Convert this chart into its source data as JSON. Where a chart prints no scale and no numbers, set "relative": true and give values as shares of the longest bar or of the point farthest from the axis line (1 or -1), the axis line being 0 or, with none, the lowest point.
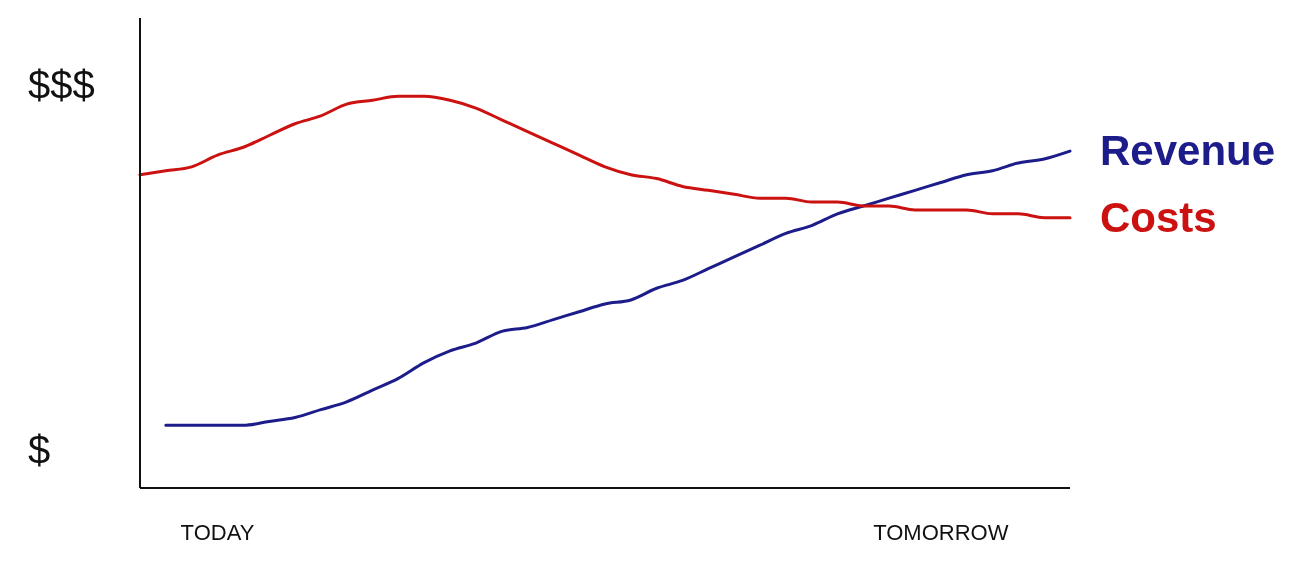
{
  "chart_data": {
    "type": "line",
    "relative": true,
    "categories": [
      null,
      null,
      null,
      "TODAY",
      null,
      null,
      null,
      null,
      null,
      null,
      null,
      null,
      null,
      null,
      null,
      null,
      null,
      null,
      null,
      null,
      null,
      null,
      null,
      null,
      null,
      null,
      null,
      null,
      null,
      null,
      null,
      "TOMORROW",
      null,
      null,
      null,
      null,
      null
    ],
    "series": [
      {
        "name": "Revenue",
        "color": "#1c1c8a",
        "values": [
          null,
          0.16,
          0.16,
          0.16,
          0.16,
          0.17,
          0.18,
          0.2,
          0.22,
          0.25,
          0.28,
          0.32,
          0.35,
          0.37,
          0.4,
          0.41,
          0.43,
          0.45,
          0.47,
          0.48,
          0.51,
          0.53,
          0.56,
          0.59,
          0.62,
          0.65,
          0.67,
          0.7,
          0.72,
          0.74,
          0.76,
          0.78,
          0.8,
          0.81,
          0.83,
          0.84,
          0.86
        ]
      },
      {
        "name": "Costs",
        "color": "#cc1111",
        "values": [
          0.8,
          0.81,
          0.82,
          0.85,
          0.87,
          0.9,
          0.93,
          0.95,
          0.98,
          0.99,
          1.0,
          1.0,
          0.99,
          0.97,
          0.94,
          0.91,
          0.88,
          0.85,
          0.82,
          0.8,
          0.79,
          0.77,
          0.76,
          0.75,
          0.74,
          0.74,
          0.73,
          0.73,
          0.72,
          0.72,
          0.71,
          0.71,
          0.71,
          0.7,
          0.7,
          0.69,
          0.69
        ]
      }
    ],
    "annotations": [
      "$$$",
      "$"
    ],
    "legend": false,
    "grid": false,
    "marker": "none",
    "line_style": "solid"
  }
}
